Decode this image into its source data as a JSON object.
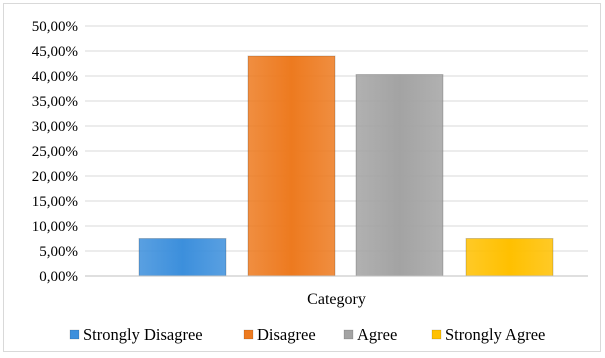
{
  "chart_data": {
    "type": "bar",
    "categories": [
      "Category"
    ],
    "series": [
      {
        "name": "Strongly Disagree",
        "values": [
          7.5
        ],
        "color": "#3c8fdc"
      },
      {
        "name": "Disagree",
        "values": [
          44.0
        ],
        "color": "#ed7a1f"
      },
      {
        "name": "Agree",
        "values": [
          40.3
        ],
        "color": "#a3a3a3"
      },
      {
        "name": "Strongly Agree",
        "values": [
          7.5
        ],
        "color": "#ffc000"
      }
    ],
    "ylim": [
      0,
      50
    ],
    "yticks": [
      "0,00%",
      "5,00%",
      "10,00%",
      "15,00%",
      "20,00%",
      "25,00%",
      "30,00%",
      "35,00%",
      "40,00%",
      "45,00%",
      "50,00%"
    ],
    "grid": true,
    "legend_position": "bottom",
    "title": "",
    "xlabel": "",
    "ylabel": ""
  }
}
